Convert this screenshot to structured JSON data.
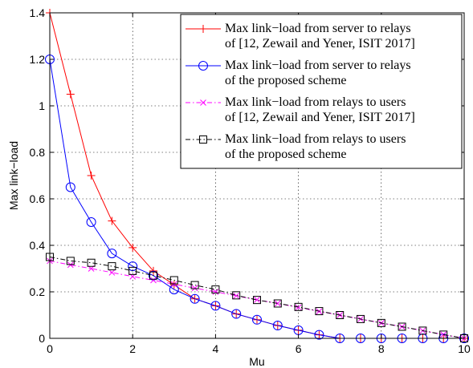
{
  "chart_data": {
    "type": "line",
    "xlabel": "Mu",
    "ylabel": "Max link−load",
    "xlim": [
      0,
      10
    ],
    "ylim": [
      0,
      1.4
    ],
    "x_ticks": [
      "0",
      "2",
      "4",
      "6",
      "8",
      "10"
    ],
    "y_ticks": [
      "0",
      "0.2",
      "0.4",
      "0.6",
      "0.8",
      "1",
      "1.2",
      "1.4"
    ],
    "grid": true,
    "legend_position": "top-right",
    "x": [
      0,
      0.5,
      1,
      1.5,
      2,
      2.5,
      3,
      3.5,
      4,
      4.5,
      5,
      5.5,
      6,
      6.5,
      7,
      7.5,
      8,
      8.5,
      9,
      9.5,
      10
    ],
    "series": [
      {
        "name_lines": [
          "Max link−load from server to relays",
          "of [12, Zewail and Yener, ISIT 2017]"
        ],
        "color": "#ff0000",
        "marker": "plus",
        "dash": "solid",
        "values": [
          1.4,
          1.05,
          0.7,
          0.505,
          0.39,
          0.29,
          0.23,
          0.17,
          0.14,
          0.105,
          0.08,
          0.055,
          0.035,
          0.015,
          0,
          0,
          0,
          0,
          0,
          0,
          0
        ]
      },
      {
        "name_lines": [
          "Max link−load from server to relays",
          "of the proposed scheme"
        ],
        "color": "#0000ff",
        "marker": "circle",
        "dash": "solid",
        "values": [
          1.2,
          0.65,
          0.5,
          0.365,
          0.31,
          0.27,
          0.21,
          0.17,
          0.14,
          0.105,
          0.08,
          0.055,
          0.035,
          0.015,
          0,
          0,
          0,
          0,
          0,
          0,
          0
        ]
      },
      {
        "name_lines": [
          "Max link−load from relays to users",
          "of [12, Zewail and Yener, ISIT 2017]"
        ],
        "color": "#ff00ff",
        "marker": "x",
        "dash": "dashdot",
        "values": [
          0.333,
          0.316,
          0.3,
          0.283,
          0.266,
          0.25,
          0.233,
          0.216,
          0.2,
          0.183,
          0.166,
          0.15,
          0.133,
          0.116,
          0.1,
          0.083,
          0.066,
          0.05,
          0.033,
          0.016,
          0
        ]
      },
      {
        "name_lines": [
          "Max link−load from relays to users",
          "of the proposed scheme"
        ],
        "color": "#000000",
        "marker": "square",
        "dash": "dashdot",
        "values": [
          0.35,
          0.333,
          0.325,
          0.31,
          0.29,
          0.27,
          0.25,
          0.229,
          0.21,
          0.185,
          0.165,
          0.15,
          0.135,
          0.117,
          0.1,
          0.083,
          0.066,
          0.05,
          0.033,
          0.016,
          0
        ]
      }
    ]
  }
}
